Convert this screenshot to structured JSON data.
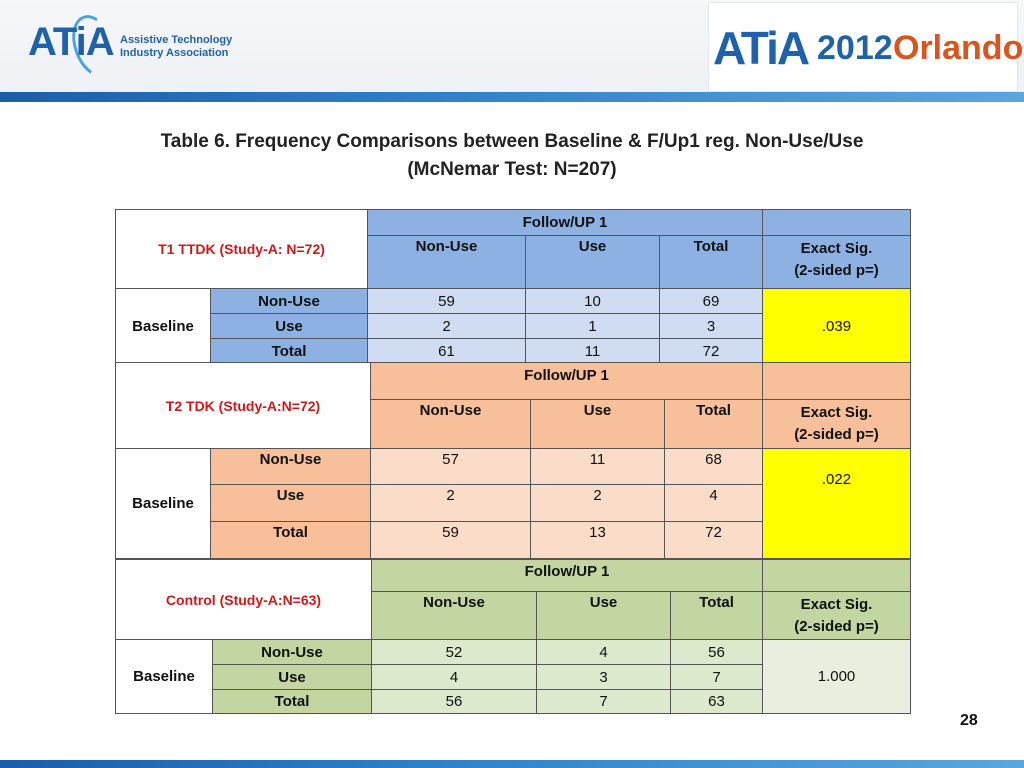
{
  "header": {
    "left_logo": {
      "mark": "ATiA",
      "line1": "Assistive Technology",
      "line2": "Industry Association"
    },
    "right_logo": {
      "mark": "ATiA",
      "year": "2012",
      "city": "Orlando"
    }
  },
  "title": {
    "line1": "Table 6. Frequency Comparisons between Baseline & F/Up1 reg. Non-Use/Use",
    "line2": "(McNemar Test: N=207)"
  },
  "blocks": [
    {
      "study": "T1 TTDK (Study-A: N=72)",
      "follow_up": "Follow/UP 1",
      "col_nonuse": "Non-Use",
      "col_use": "Use",
      "col_total": "Total",
      "sig_line1": "Exact Sig.",
      "sig_line2": "(2-sided p=)",
      "baseline": "Baseline",
      "rows": [
        {
          "label": "Non-Use",
          "nonuse": "59",
          "use": "10",
          "total": "69"
        },
        {
          "label": "Use",
          "nonuse": "2",
          "use": "1",
          "total": "3"
        },
        {
          "label": "Total",
          "nonuse": "61",
          "use": "11",
          "total": "72"
        }
      ],
      "p": ".039"
    },
    {
      "study": "T2 TDK (Study-A:N=72)",
      "follow_up": "Follow/UP 1",
      "col_nonuse": "Non-Use",
      "col_use": "Use",
      "col_total": "Total",
      "sig_line1": "Exact Sig.",
      "sig_line2": "(2-sided p=)",
      "baseline": "Baseline",
      "rows": [
        {
          "label": "Non-Use",
          "nonuse": "57",
          "use": "11",
          "total": "68"
        },
        {
          "label": "Use",
          "nonuse": "2",
          "use": "2",
          "total": "4"
        },
        {
          "label": "Total",
          "nonuse": "59",
          "use": "13",
          "total": "72"
        }
      ],
      "p": ".022"
    },
    {
      "study": "Control  (Study-A:N=63)",
      "follow_up": "Follow/UP 1",
      "col_nonuse": "Non-Use",
      "col_use": "Use",
      "col_total": "Total",
      "sig_line1": "Exact Sig.",
      "sig_line2": "(2-sided p=)",
      "baseline": "Baseline",
      "rows": [
        {
          "label": "Non-Use",
          "nonuse": "52",
          "use": "4",
          "total": "56"
        },
        {
          "label": "Use",
          "nonuse": "4",
          "use": "3",
          "total": "7"
        },
        {
          "label": "Total",
          "nonuse": "56",
          "use": "7",
          "total": "63"
        }
      ],
      "p": "1.000"
    }
  ],
  "page_number": "28",
  "colors": {
    "accent_blue": "#1e62aa",
    "study_red": "#cc1a1a",
    "highlight_yellow": "#ffff00",
    "block1_header": "#8db1e2",
    "block2_header": "#f7bf9a",
    "block3_header": "#c3d6a2"
  }
}
